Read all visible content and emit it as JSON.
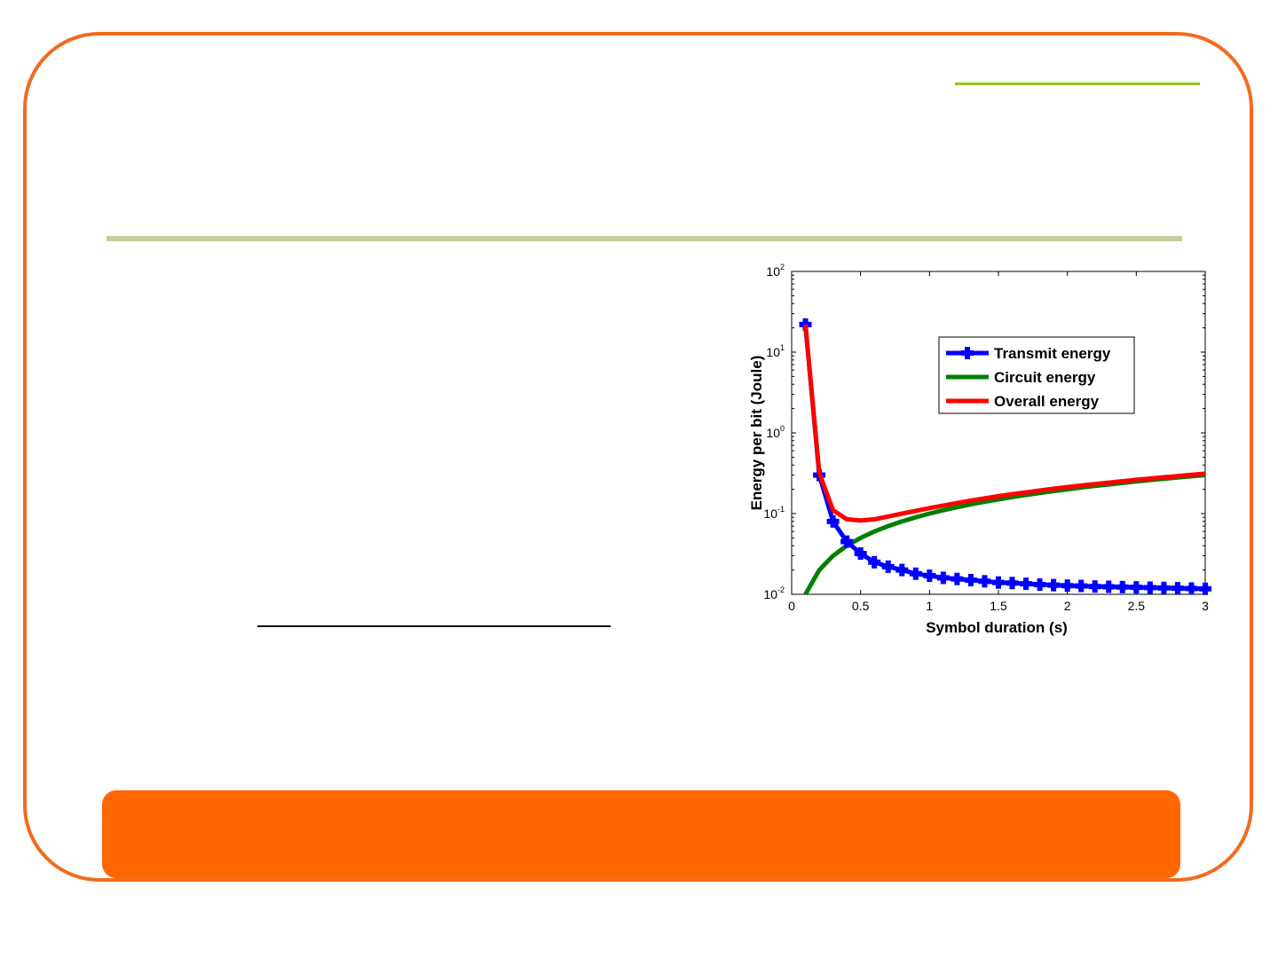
{
  "colors": {
    "frame": "#f26b1d",
    "accent_line": "#9ac31c",
    "title_underline": "#c9cc99",
    "footer": "#ff6600"
  },
  "chart_data": {
    "type": "line",
    "xlabel": "Symbol duration (s)",
    "ylabel": "Energy per bit (Joule)",
    "xlim": [
      0,
      3
    ],
    "ylim": [
      0.01,
      100
    ],
    "y_scale": "log",
    "grid": false,
    "legend_position": "top-right",
    "x_ticks": [
      {
        "value": 0,
        "label": "0"
      },
      {
        "value": 0.5,
        "label": "0.5"
      },
      {
        "value": 1,
        "label": "1"
      },
      {
        "value": 1.5,
        "label": "1.5"
      },
      {
        "value": 2,
        "label": "2"
      },
      {
        "value": 2.5,
        "label": "2.5"
      },
      {
        "value": 3,
        "label": "3"
      }
    ],
    "y_ticks": [
      {
        "value": 0.01,
        "base": "10",
        "exp": "-2"
      },
      {
        "value": 0.1,
        "base": "10",
        "exp": "-1"
      },
      {
        "value": 1,
        "base": "10",
        "exp": "0"
      },
      {
        "value": 10,
        "base": "10",
        "exp": "1"
      },
      {
        "value": 100,
        "base": "10",
        "exp": "2"
      }
    ],
    "x": [
      0.1,
      0.2,
      0.3,
      0.4,
      0.5,
      0.6,
      0.7,
      0.8,
      0.9,
      1.0,
      1.1,
      1.2,
      1.3,
      1.4,
      1.5,
      1.6,
      1.7,
      1.8,
      1.9,
      2.0,
      2.1,
      2.2,
      2.3,
      2.4,
      2.5,
      2.6,
      2.7,
      2.8,
      2.9,
      3.0
    ],
    "series": [
      {
        "name": "Transmit energy",
        "color": "#0000ff",
        "marker": true,
        "values": [
          22,
          0.3,
          0.08,
          0.045,
          0.032,
          0.025,
          0.022,
          0.02,
          0.018,
          0.017,
          0.016,
          0.0155,
          0.015,
          0.0145,
          0.014,
          0.0138,
          0.0135,
          0.0132,
          0.013,
          0.0128,
          0.0127,
          0.0125,
          0.0124,
          0.0123,
          0.0122,
          0.0121,
          0.012,
          0.0119,
          0.0118,
          0.0117
        ]
      },
      {
        "name": "Circuit energy",
        "color": "#008000",
        "marker": false,
        "values": [
          0.01,
          0.02,
          0.03,
          0.04,
          0.05,
          0.06,
          0.07,
          0.08,
          0.09,
          0.1,
          0.11,
          0.12,
          0.13,
          0.14,
          0.15,
          0.16,
          0.17,
          0.18,
          0.19,
          0.2,
          0.21,
          0.22,
          0.23,
          0.24,
          0.25,
          0.26,
          0.27,
          0.28,
          0.29,
          0.3
        ]
      },
      {
        "name": "Overall energy",
        "color": "#ff0000",
        "marker": false,
        "values": [
          22,
          0.32,
          0.11,
          0.085,
          0.082,
          0.085,
          0.092,
          0.1,
          0.108,
          0.117,
          0.126,
          0.135,
          0.145,
          0.154,
          0.164,
          0.174,
          0.183,
          0.193,
          0.203,
          0.213,
          0.223,
          0.232,
          0.242,
          0.252,
          0.262,
          0.272,
          0.282,
          0.292,
          0.302,
          0.312
        ]
      }
    ]
  }
}
